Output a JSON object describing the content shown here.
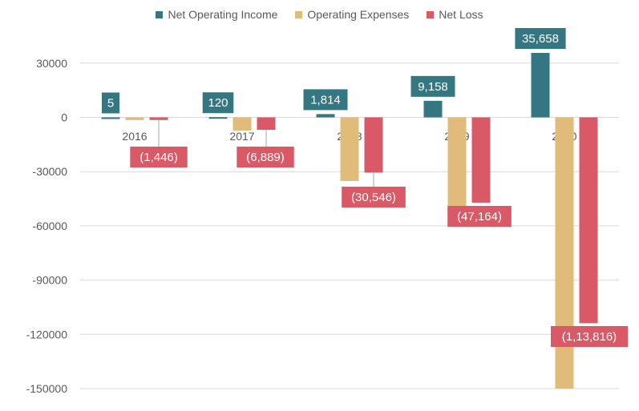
{
  "chart_data": {
    "type": "bar",
    "title": "",
    "xlabel": "",
    "ylabel": "",
    "categories": [
      "2016",
      "2017",
      "2018",
      "2019",
      "2020"
    ],
    "series": [
      {
        "name": "Net Operating Income",
        "color": "#347783",
        "values": [
          5,
          120,
          1814,
          9158,
          35658
        ],
        "labels": [
          "5",
          "120",
          "1,814",
          "9,158",
          "35,658"
        ]
      },
      {
        "name": "Operating Expenses",
        "color": "#E1BB7A",
        "values": [
          -1500,
          -7300,
          -35200,
          -60000,
          -150000
        ],
        "labels": []
      },
      {
        "name": "Net Loss",
        "color": "#D95A66",
        "values": [
          -1446,
          -6889,
          -30546,
          -47164,
          -113816
        ],
        "labels": [
          "(1,446)",
          "(6,889)",
          "(30,546)",
          "(47,164)",
          "(1,13,816)"
        ]
      }
    ],
    "yticks": [
      "30000",
      "0",
      "-30000",
      "-60000",
      "-90000",
      "-120000",
      "-150000"
    ],
    "ytick_values": [
      30000,
      0,
      -30000,
      -60000,
      -90000,
      -120000,
      -150000
    ],
    "ylim": [
      -150000,
      40000
    ],
    "grid": true,
    "legend_position": "top-center"
  }
}
